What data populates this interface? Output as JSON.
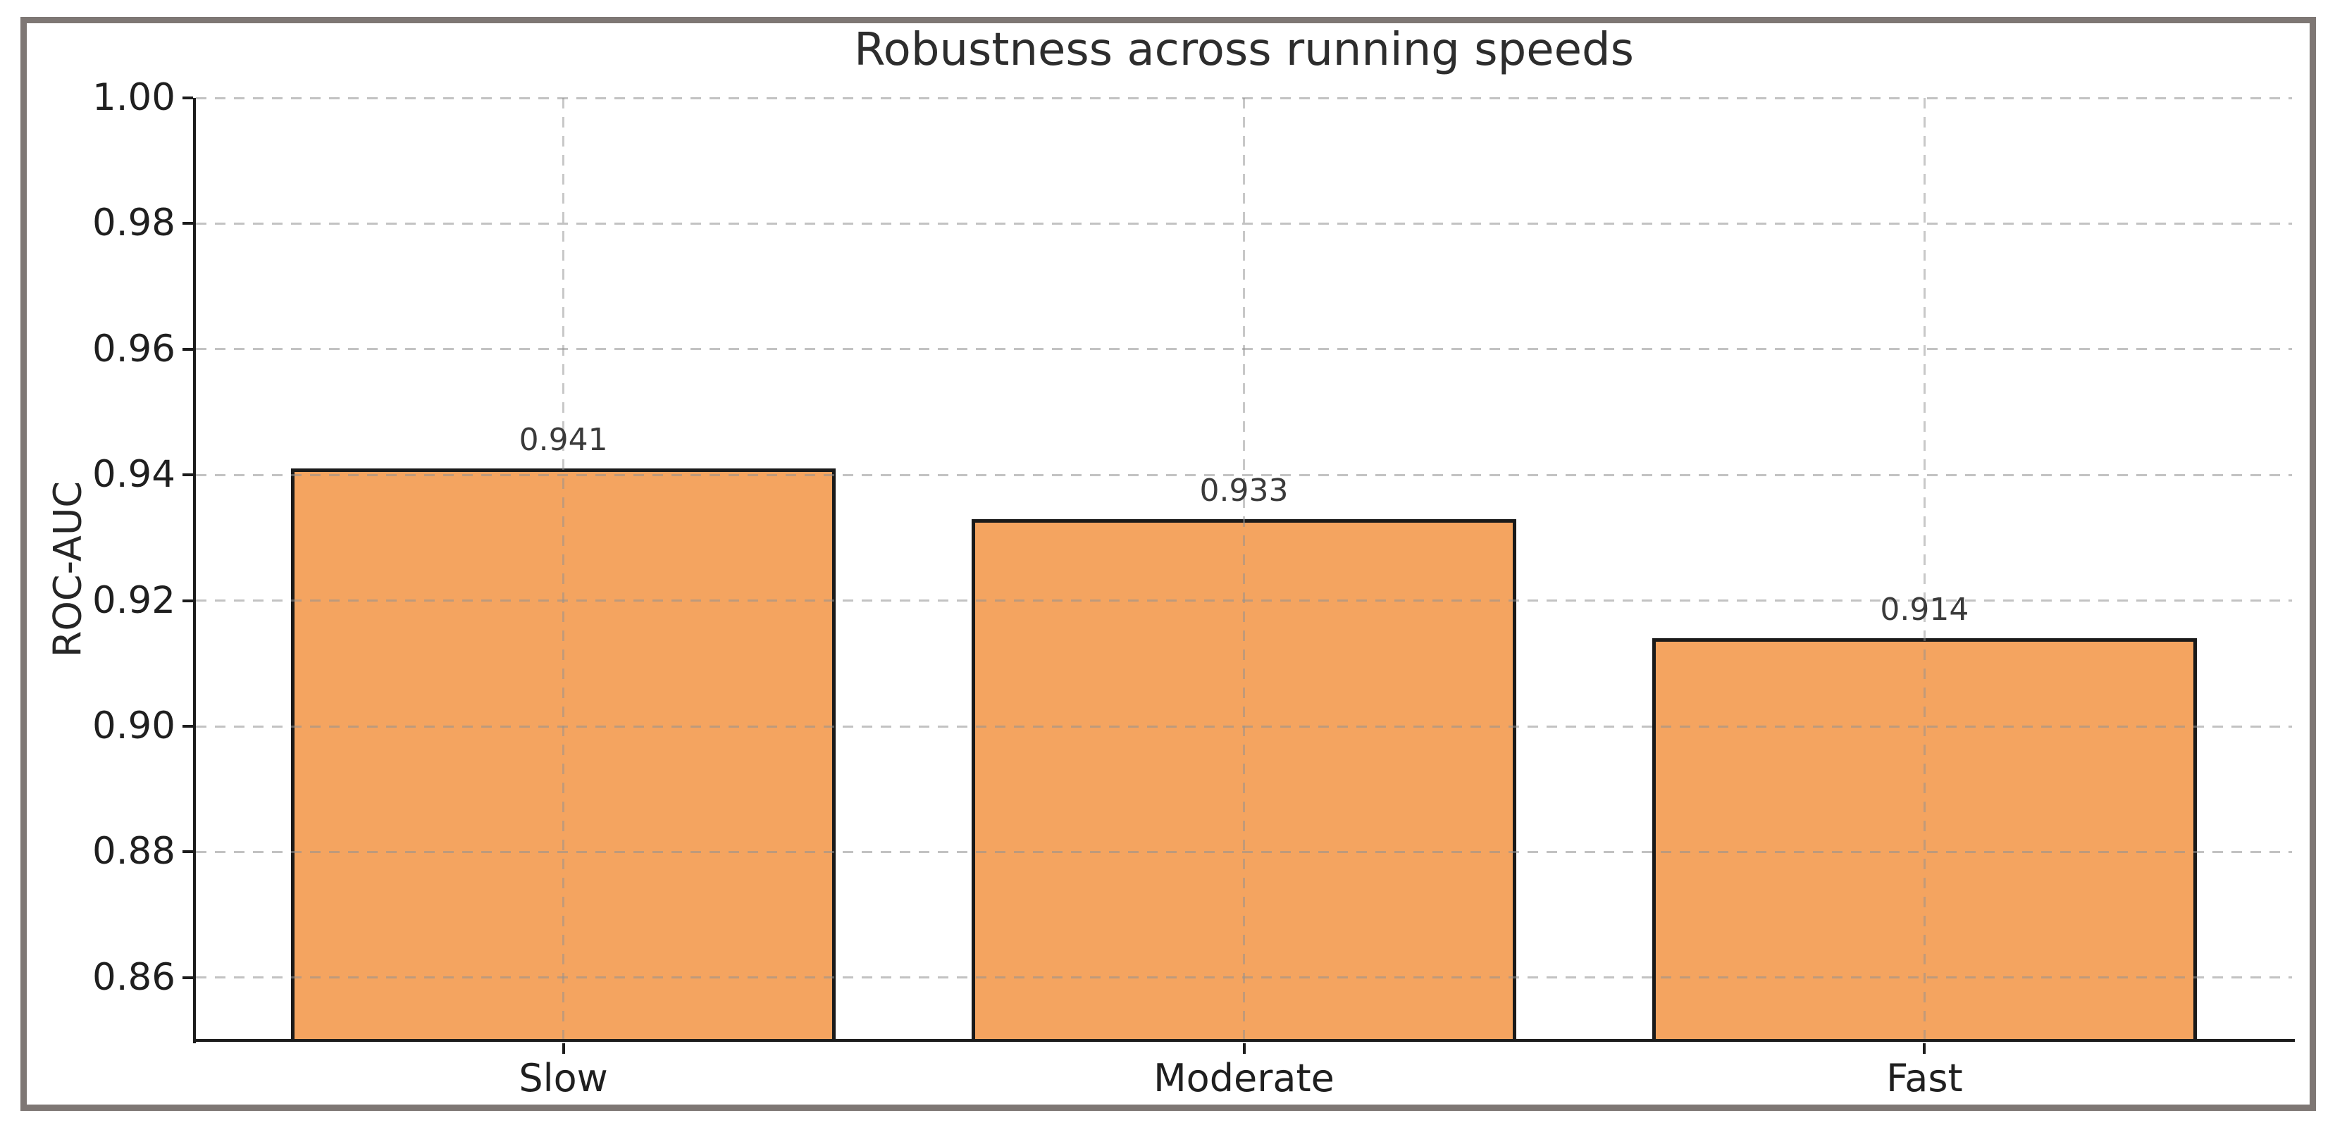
{
  "figure": {
    "title": "Robustness across running speeds",
    "ylabel": "ROC-AUC"
  },
  "chart_data": {
    "type": "bar",
    "title": "Robustness across running speeds",
    "xlabel": "",
    "ylabel": "ROC-AUC",
    "categories": [
      "Slow",
      "Moderate",
      "Fast"
    ],
    "values": [
      0.941,
      0.933,
      0.914
    ],
    "bar_value_labels": [
      "0.941",
      "0.933",
      "0.914"
    ],
    "ylim": [
      0.85,
      1.0
    ],
    "yticks": [
      0.86,
      0.88,
      0.9,
      0.92,
      0.94,
      0.96,
      0.98,
      1.0
    ],
    "ytick_labels": [
      "0.86",
      "0.88",
      "0.90",
      "0.92",
      "0.94",
      "0.96",
      "0.98",
      "1.00"
    ],
    "grid": true,
    "grid_style": "dashed",
    "grid_on_top_of_bars": true,
    "legend_position": "none",
    "colors": {
      "bar_fill": "#f4a460",
      "bar_edge": "#1a1a1a",
      "grid": "#919191",
      "text": "#262626",
      "frame_border": "#7e7774",
      "background": "#ffffff"
    }
  }
}
